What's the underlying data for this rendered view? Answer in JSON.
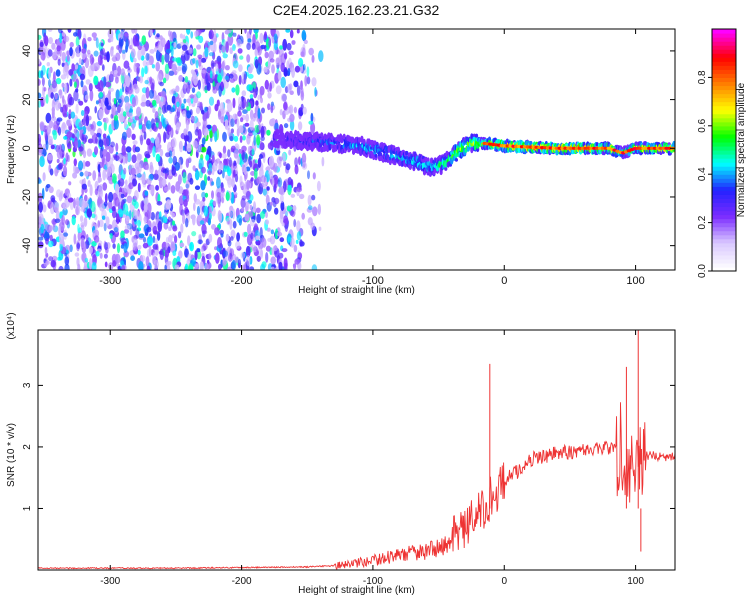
{
  "title": "C2E4.2025.162.23.21.G32",
  "chart_data": [
    {
      "type": "heatmap",
      "xlabel": "Height of straight line (km)",
      "ylabel": "Frequency (Hz)",
      "xlim": [
        -355,
        130
      ],
      "ylim": [
        -50,
        49
      ],
      "x_ticks": [
        -300,
        -200,
        -100,
        0,
        100
      ],
      "y_ticks": [
        -40,
        -20,
        0,
        20,
        40
      ],
      "colorbar": {
        "label": "Normalized spectral amplitude",
        "range": [
          0,
          1
        ],
        "ticks": [
          "0.0",
          "0.2",
          "0.4",
          "0.6",
          "0.8"
        ],
        "tick_values": [
          0,
          0.2,
          0.4,
          0.6,
          0.8
        ],
        "colormap": [
          "#ffffff",
          "#d9c8ff",
          "#7b2cff",
          "#2222ff",
          "#00ffff",
          "#00ff00",
          "#ffff00",
          "#ff8000",
          "#ff0000",
          "#ff00ff"
        ]
      },
      "noise_region_x": [
        -355,
        -135
      ],
      "ridge": {
        "x": [
          -170,
          -150,
          -130,
          -110,
          -90,
          -70,
          -55,
          -45,
          -35,
          -25,
          -15,
          0,
          40,
          80,
          90,
          100,
          130
        ],
        "freq": [
          4,
          3,
          2,
          1,
          -2,
          -5,
          -8,
          -6,
          -1,
          2,
          2,
          1,
          0,
          0,
          -2,
          0,
          0
        ],
        "amplitude": [
          0.25,
          0.3,
          0.35,
          0.4,
          0.4,
          0.45,
          0.45,
          0.5,
          0.6,
          0.6,
          0.65,
          0.8,
          0.8,
          0.75,
          0.5,
          0.7,
          0.75
        ]
      }
    },
    {
      "type": "line",
      "xlabel": "Height of straight line (km)",
      "ylabel": "SNR (10 * v/v)",
      "y_multiplier": "(x10⁴)",
      "xlim": [
        -355,
        130
      ],
      "ylim": [
        0,
        3.9
      ],
      "x_ticks": [
        -300,
        -200,
        -100,
        0,
        100
      ],
      "y_ticks": [
        1,
        2,
        3
      ],
      "color": "#ee3333",
      "series": [
        {
          "x": [
            -355,
            -300,
            -250,
            -200,
            -150,
            -120,
            -100,
            -80,
            -60,
            -45,
            -35,
            -25,
            -20,
            -15,
            -12,
            -10,
            -5,
            0,
            10,
            20,
            30,
            40,
            50,
            60,
            70,
            80,
            85,
            90,
            95,
            100,
            105,
            110,
            120,
            130
          ],
          "y": [
            0.03,
            0.03,
            0.03,
            0.04,
            0.05,
            0.08,
            0.15,
            0.25,
            0.3,
            0.4,
            0.6,
            0.8,
            0.9,
            1.0,
            1.1,
            1.2,
            1.3,
            1.45,
            1.6,
            1.8,
            1.85,
            1.9,
            1.92,
            1.95,
            1.97,
            1.98,
            2.0,
            2.0,
            1.9,
            1.8,
            1.95,
            1.85,
            1.85,
            1.85
          ]
        }
      ],
      "spikes": [
        {
          "x": -11,
          "y": 3.35
        },
        {
          "x": 93,
          "y": 3.3
        },
        {
          "x": 102,
          "y": 3.9
        },
        {
          "x": 104,
          "y": 0.3
        }
      ]
    }
  ]
}
